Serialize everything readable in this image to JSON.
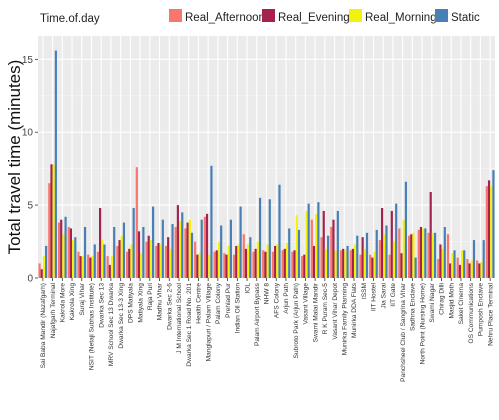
{
  "chart_data": {
    "type": "bar",
    "ylabel": "Total travel time (minutes)",
    "xlabel": "",
    "ylim": [
      0,
      16.6
    ],
    "yticks": [
      0,
      5,
      10,
      15
    ],
    "grid": true,
    "legend": {
      "title": "Time.of.day",
      "placement": "top",
      "entries": [
        "Real_Afternoon",
        "Real_Evening",
        "Real_Morning",
        "Static"
      ]
    },
    "colors": {
      "Real_Afternoon": "#F8766D",
      "Real_Evening": "#A3234E",
      "Real_Morning": "#F2F20A",
      "Static": "#4A7FB5",
      "panel": "#EBEBEB",
      "grid_major": "#FFFFFF"
    },
    "categories": [
      "Sai Baba Mandir (Nazafgarh)",
      "Najafgarh Terminal",
      "Kakrola More",
      "Kakrola Xing",
      "Suraj Vihar",
      "NSIT (Netaji Subhas Institute)",
      "Dwarka Sec 13",
      "MRV School Sec 13 Dwarka",
      "Dwarka Sec 13-3 Xing",
      "DPS Matiyala",
      "Matiyala Xing",
      "Raja Puri",
      "Madhu Vihar",
      "Dwarka Sec 2-6",
      "J M International School",
      "Dwarka Sec 1 Road No. 201",
      "Health Centre",
      "Manglapuri / Palam Village",
      "Palam Colony",
      "Prehlad Pur",
      "Indian Oil Station",
      "IOL",
      "Palam Airport Bypass",
      "NHW 8",
      "AFS Colony",
      "Arjun Path",
      "Subroto Park (Arjun Path)",
      "Vasant Village",
      "Swami Malai Mandir",
      "R K Puram Sec-5",
      "Vasant Vihar Depot",
      "Munirka Family Planning",
      "Munirka DDA Flats",
      "ISSM",
      "IIT Hostel",
      "Jia Sarai",
      "IIT Gate",
      "Panchsheel Club / Sangrina Vihar",
      "Sadhna Enclave",
      "North Point (Nursing Home)",
      "Swami Nagar",
      "Chirag Dilli",
      "Masjid Moth",
      "Saket Cinema",
      "OS Communications",
      "Pumposh Enclave",
      "Nehru Place Terminal"
    ],
    "series": [
      {
        "name": "Real_Afternoon",
        "values": [
          1.0,
          6.5,
          3.8,
          3.5,
          1.8,
          1.6,
          1.8,
          1.5,
          2.2,
          1.8,
          7.6,
          2.5,
          2.2,
          2.2,
          3.5,
          3.4,
          2.5,
          4.2,
          1.8,
          1.7,
          1.6,
          3.0,
          1.8,
          1.9,
          1.8,
          1.9,
          1.8,
          1.5,
          4.0,
          2.8,
          3.5,
          1.9,
          1.9,
          1.6,
          1.6,
          2.6,
          1.6,
          3.4,
          2.9,
          3.3,
          3.1,
          1.3,
          3.0,
          1.4,
          1.3,
          1.2,
          6.3
        ]
      },
      {
        "name": "Real_Evening",
        "values": [
          0.6,
          7.8,
          4.0,
          3.4,
          1.5,
          1.4,
          4.8,
          0.9,
          2.6,
          2.0,
          3.2,
          2.9,
          2.4,
          2.8,
          5.0,
          3.8,
          1.6,
          4.4,
          1.9,
          1.6,
          2.2,
          2.0,
          2.0,
          1.8,
          2.2,
          2.0,
          1.9,
          1.6,
          2.2,
          4.6,
          4.0,
          2.0,
          2.0,
          2.8,
          1.4,
          4.8,
          4.6,
          1.7,
          3.0,
          3.5,
          5.9,
          2.3,
          1.0,
          0.9,
          1.0,
          1.0,
          6.7
        ]
      },
      {
        "name": "Real_Morning",
        "values": [
          1.5,
          7.8,
          3.0,
          2.6,
          1.5,
          1.5,
          2.6,
          1.5,
          2.9,
          2.3,
          1.7,
          2.6,
          2.3,
          2.0,
          3.9,
          4.0,
          1.7,
          1.6,
          2.5,
          2.2,
          2.3,
          2.3,
          2.5,
          2.3,
          2.3,
          2.4,
          4.3,
          4.6,
          4.4,
          2.0,
          1.9,
          1.9,
          2.3,
          2.0,
          1.8,
          3.0,
          2.5,
          4.0,
          3.1,
          3.4,
          3.1,
          2.0,
          1.7,
          1.9,
          1.2,
          1.1,
          6.3
        ]
      },
      {
        "name": "Static",
        "values": [
          2.2,
          15.6,
          4.2,
          2.8,
          3.5,
          2.3,
          2.3,
          3.5,
          3.8,
          4.8,
          3.5,
          4.9,
          4.0,
          3.7,
          4.5,
          3.1,
          4.0,
          7.7,
          3.6,
          4.0,
          4.9,
          2.8,
          5.5,
          5.4,
          6.4,
          3.4,
          3.3,
          5.1,
          5.2,
          2.9,
          4.6,
          2.2,
          2.9,
          3.1,
          3.3,
          3.6,
          5.1,
          6.6,
          1.4,
          3.4,
          3.1,
          3.5,
          1.9,
          1.9,
          2.6,
          2.6,
          7.4
        ]
      }
    ]
  }
}
